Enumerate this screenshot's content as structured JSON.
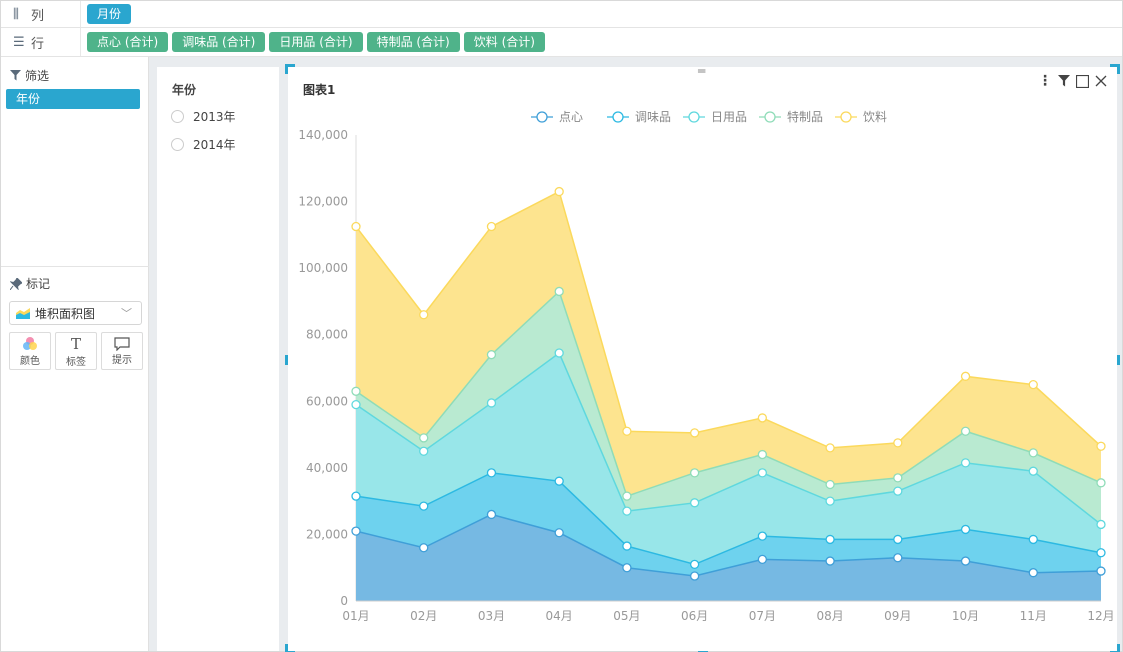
{
  "shelf": {
    "columns_label": "列",
    "rows_label": "行",
    "column_fields": [
      "月份"
    ],
    "row_fields": [
      "点心 (合计)",
      "调味品 (合计)",
      "日用品 (合计)",
      "特制品 (合计)",
      "饮料 (合计)"
    ]
  },
  "left_panel": {
    "filter_title": "筛选",
    "filter_field": "年份",
    "marks_title": "标记",
    "chart_type": "堆积面积图",
    "mark_buttons": [
      "颜色",
      "标签",
      "提示"
    ]
  },
  "filter_card": {
    "title": "年份",
    "options": [
      "2013年",
      "2014年"
    ]
  },
  "chart_card": {
    "title": "图表1"
  },
  "colors": {
    "accent": "#2aa6cf",
    "pill_green": "#4fb38a"
  },
  "chart_data": {
    "type": "area",
    "stacked": true,
    "title": "图表1",
    "categories": [
      "01月",
      "02月",
      "03月",
      "04月",
      "05月",
      "06月",
      "07月",
      "08月",
      "09月",
      "10月",
      "11月",
      "12月"
    ],
    "ylim": [
      0,
      140000
    ],
    "yticks": [
      "0",
      "20,000",
      "40,000",
      "60,000",
      "80,000",
      "100,000",
      "120,000",
      "140,000"
    ],
    "legend_position": "top-center",
    "series": [
      {
        "name": "点心",
        "color": "#3f9fd8",
        "fill": "#76b9e3",
        "values": [
          21000,
          16000,
          26000,
          20500,
          10000,
          7500,
          12500,
          12000,
          13000,
          12000,
          8500,
          9000
        ]
      },
      {
        "name": "调味品",
        "color": "#2cb9e2",
        "fill": "#6ed2ee",
        "values": [
          10500,
          12500,
          12500,
          15500,
          6500,
          3500,
          7000,
          6500,
          5500,
          9500,
          10000,
          5500
        ]
      },
      {
        "name": "日用品",
        "color": "#5fd8de",
        "fill": "#98e6e9",
        "values": [
          27500,
          16500,
          21000,
          38500,
          10500,
          18500,
          19000,
          11500,
          14500,
          20000,
          20500,
          8500
        ]
      },
      {
        "name": "特制品",
        "color": "#8fdcb8",
        "fill": "#b9ead1",
        "values": [
          4000,
          4000,
          14500,
          18500,
          4500,
          9000,
          5500,
          5000,
          4000,
          9500,
          5500,
          12500
        ]
      },
      {
        "name": "饮料",
        "color": "#fbd95c",
        "fill": "#fde48f",
        "values": [
          49500,
          37000,
          38500,
          30000,
          19500,
          12000,
          11000,
          11000,
          10500,
          16500,
          20500,
          11000
        ]
      }
    ]
  }
}
